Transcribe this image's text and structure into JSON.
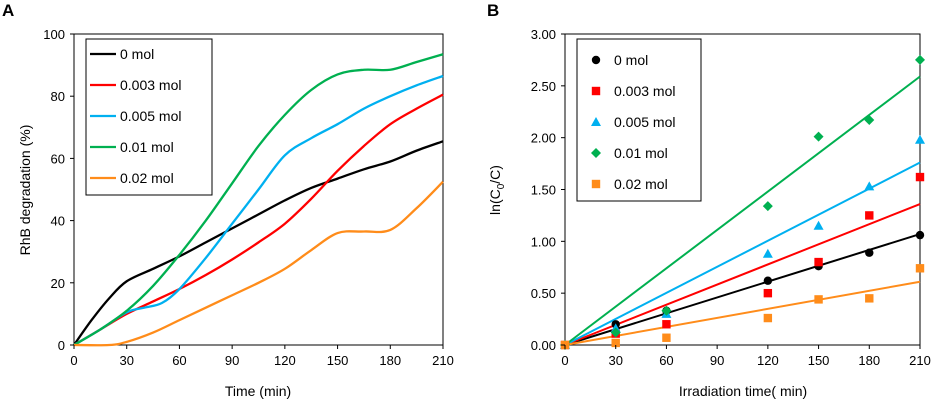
{
  "chart_data": [
    {
      "panel": "A",
      "type": "line",
      "xlabel": "Time (min)",
      "ylabel": "RhB degradation (%)",
      "xlim": [
        0,
        210
      ],
      "ylim": [
        0,
        100
      ],
      "xticks": [
        0,
        30,
        60,
        90,
        120,
        150,
        180,
        210
      ],
      "yticks": [
        0,
        20,
        40,
        60,
        80,
        100
      ],
      "legend_position": "top-left",
      "series": [
        {
          "name": "0 mol",
          "color": "#000000",
          "x": [
            0,
            10,
            20,
            30,
            45,
            60,
            75,
            90,
            105,
            120,
            135,
            150,
            165,
            180,
            195,
            210
          ],
          "y": [
            0,
            8,
            15,
            20.5,
            24.5,
            28.5,
            33,
            37.5,
            42,
            46.5,
            50.5,
            53.5,
            56.5,
            59,
            62.5,
            65.5
          ]
        },
        {
          "name": "0.003 mol",
          "color": "#ff0000",
          "x": [
            0,
            15,
            30,
            45,
            60,
            75,
            90,
            105,
            120,
            135,
            150,
            165,
            180,
            195,
            210
          ],
          "y": [
            0,
            5,
            10,
            14,
            18,
            22.5,
            27.5,
            33,
            39,
            47,
            56,
            64,
            71,
            76,
            80.5
          ]
        },
        {
          "name": "0.005 mol",
          "color": "#00b0f0",
          "x": [
            0,
            15,
            30,
            40,
            50,
            60,
            75,
            90,
            105,
            120,
            135,
            150,
            165,
            180,
            195,
            210
          ],
          "y": [
            0,
            5,
            10.5,
            12,
            13.5,
            18,
            28,
            39,
            50,
            61,
            66.5,
            71,
            76,
            80,
            83.5,
            86.5
          ]
        },
        {
          "name": "0.01 mol",
          "color": "#00b050",
          "x": [
            0,
            15,
            30,
            45,
            60,
            75,
            90,
            105,
            120,
            135,
            150,
            165,
            180,
            195,
            210
          ],
          "y": [
            0,
            5,
            11,
            19,
            29,
            40,
            52,
            64,
            74,
            82,
            87,
            88.5,
            88.5,
            91,
            93.5
          ]
        },
        {
          "name": "0.02 mol",
          "color": "#ff8c1a",
          "x": [
            0,
            20,
            30,
            45,
            60,
            75,
            90,
            105,
            120,
            135,
            150,
            165,
            180,
            195,
            210
          ],
          "y": [
            0,
            0,
            1,
            4,
            8,
            12,
            16,
            20,
            24.5,
            30.5,
            36,
            36.5,
            37,
            44,
            52.5
          ]
        }
      ]
    },
    {
      "panel": "B",
      "type": "scatter",
      "xlabel": "Irradiation time( min)",
      "ylabel_base": "ln(C",
      "ylabel_sub": "0",
      "ylabel_tail": "/C)",
      "xlim": [
        0,
        210
      ],
      "ylim": [
        0,
        3.0
      ],
      "xticks": [
        "0",
        "30",
        "60",
        "90",
        "120",
        "150",
        "180",
        "210"
      ],
      "yticks": [
        "0.00",
        "0.50",
        "1.00",
        "1.50",
        "2.00",
        "2.50",
        "3.00"
      ],
      "legend_position": "top-left",
      "series": [
        {
          "name": "0 mol",
          "marker": "circle",
          "color": "#000000",
          "x": [
            0,
            30,
            60,
            120,
            150,
            180,
            210
          ],
          "y": [
            0,
            0.2,
            0.33,
            0.62,
            0.76,
            0.89,
            1.06
          ],
          "fit_end": 1.07
        },
        {
          "name": "0.003 mol",
          "marker": "square",
          "color": "#ff0000",
          "x": [
            0,
            30,
            60,
            120,
            150,
            180,
            210
          ],
          "y": [
            0,
            0.11,
            0.2,
            0.5,
            0.8,
            1.25,
            1.62
          ],
          "fit_end": 1.36
        },
        {
          "name": "0.005 mol",
          "marker": "triangle",
          "color": "#00b0f0",
          "x": [
            0,
            30,
            60,
            120,
            150,
            180,
            210
          ],
          "y": [
            0,
            0.16,
            0.3,
            0.88,
            1.15,
            1.53,
            1.98
          ],
          "fit_end": 1.76
        },
        {
          "name": "0.01 mol",
          "marker": "diamond",
          "color": "#00b050",
          "x": [
            0,
            30,
            60,
            120,
            150,
            180,
            210
          ],
          "y": [
            0,
            0.12,
            0.33,
            1.34,
            2.01,
            2.17,
            2.75
          ],
          "fit_end": 2.59
        },
        {
          "name": "0.02 mol",
          "marker": "square",
          "color": "#ff8c1a",
          "x": [
            0,
            30,
            60,
            120,
            150,
            180,
            210
          ],
          "y": [
            0,
            0.02,
            0.07,
            0.26,
            0.44,
            0.45,
            0.74
          ],
          "fit_end": 0.61
        }
      ]
    }
  ]
}
